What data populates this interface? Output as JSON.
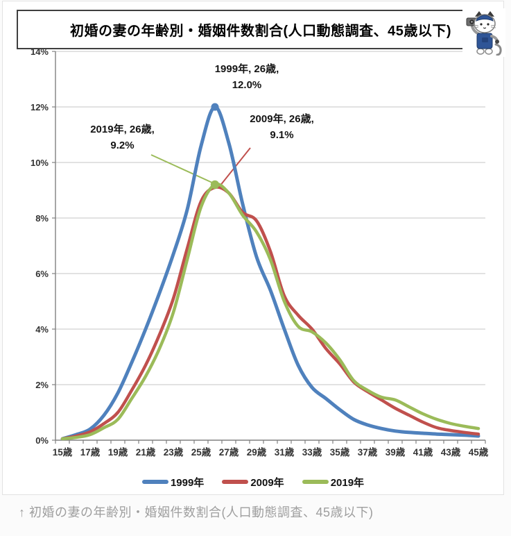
{
  "page": {
    "caption": "↑ 初婚の妻の年齢別・婚姻件数割合(人口動態調査、45歳以下)"
  },
  "chart": {
    "title": "初婚の妻の年齢別・婚姻件数割合(人口動態調査、45歳以下)",
    "mascot_icon": "cat-reporter-mascot",
    "annotations": [
      {
        "line1": "1999年, 26歳,",
        "line2": "12.0%"
      },
      {
        "line1": "2009年, 26歳,",
        "line2": "9.1%"
      },
      {
        "line1": "2019年, 26歳,",
        "line2": "9.2%"
      }
    ],
    "legend": [
      {
        "label": "1999年",
        "color": "#4F81BD"
      },
      {
        "label": "2009年",
        "color": "#C0504D"
      },
      {
        "label": "2019年",
        "color": "#9BBB59"
      }
    ]
  },
  "chart_data": {
    "type": "line",
    "title": "初婚の妻の年齢別・婚姻件数割合(人口動態調査、45歳以下)",
    "xlabel": "",
    "ylabel": "",
    "smoothed": true,
    "grid": "horizontal",
    "legend_position": "bottom",
    "ylim": [
      0,
      14
    ],
    "y_ticks": [
      {
        "v": 0,
        "label": "0%"
      },
      {
        "v": 2,
        "label": "2%"
      },
      {
        "v": 4,
        "label": "4%"
      },
      {
        "v": 6,
        "label": "6%"
      },
      {
        "v": 8,
        "label": "8%"
      },
      {
        "v": 10,
        "label": "10%"
      },
      {
        "v": 12,
        "label": "12%"
      },
      {
        "v": 14,
        "label": "14%"
      }
    ],
    "x": [
      15,
      16,
      17,
      18,
      19,
      20,
      21,
      22,
      23,
      24,
      25,
      26,
      27,
      28,
      29,
      30,
      31,
      32,
      33,
      34,
      35,
      36,
      37,
      38,
      39,
      40,
      41,
      42,
      43,
      44,
      45
    ],
    "x_ticks": [
      {
        "age": 15,
        "label": "15歳"
      },
      {
        "age": 17,
        "label": "17歳"
      },
      {
        "age": 19,
        "label": "19歳"
      },
      {
        "age": 21,
        "label": "21歳"
      },
      {
        "age": 23,
        "label": "23歳"
      },
      {
        "age": 25,
        "label": "25歳"
      },
      {
        "age": 27,
        "label": "27歳"
      },
      {
        "age": 29,
        "label": "29歳"
      },
      {
        "age": 31,
        "label": "31歳"
      },
      {
        "age": 33,
        "label": "33歳"
      },
      {
        "age": 35,
        "label": "35歳"
      },
      {
        "age": 37,
        "label": "37歳"
      },
      {
        "age": 39,
        "label": "39歳"
      },
      {
        "age": 41,
        "label": "41歳"
      },
      {
        "age": 43,
        "label": "43歳"
      },
      {
        "age": 45,
        "label": "45歳"
      }
    ],
    "series": [
      {
        "name": "1999年",
        "color": "#4F81BD",
        "values": [
          0.05,
          0.2,
          0.4,
          0.9,
          1.7,
          2.8,
          4.0,
          5.3,
          6.7,
          8.3,
          10.6,
          12.0,
          10.7,
          8.5,
          6.6,
          5.4,
          4.0,
          2.7,
          1.9,
          1.5,
          1.1,
          0.75,
          0.55,
          0.42,
          0.33,
          0.28,
          0.25,
          0.22,
          0.2,
          0.18,
          0.15
        ]
      },
      {
        "name": "2009年",
        "color": "#C0504D",
        "values": [
          0.05,
          0.15,
          0.3,
          0.6,
          1.0,
          1.8,
          2.7,
          3.8,
          5.1,
          6.9,
          8.6,
          9.1,
          8.9,
          8.2,
          7.9,
          6.8,
          5.2,
          4.5,
          4.0,
          3.3,
          2.75,
          2.1,
          1.75,
          1.45,
          1.15,
          0.9,
          0.65,
          0.45,
          0.35,
          0.28,
          0.22
        ]
      },
      {
        "name": "2019年",
        "color": "#9BBB59",
        "values": [
          0.05,
          0.1,
          0.2,
          0.45,
          0.75,
          1.5,
          2.3,
          3.3,
          4.6,
          6.5,
          8.4,
          9.2,
          8.9,
          8.1,
          7.5,
          6.5,
          5.0,
          4.1,
          3.9,
          3.5,
          2.9,
          2.15,
          1.8,
          1.55,
          1.45,
          1.2,
          0.95,
          0.75,
          0.6,
          0.5,
          0.42
        ]
      }
    ],
    "peak_markers": [
      {
        "series": "1999年",
        "age": 26,
        "value": 12.0
      },
      {
        "series": "2019年",
        "age": 26,
        "value": 9.2
      }
    ]
  }
}
